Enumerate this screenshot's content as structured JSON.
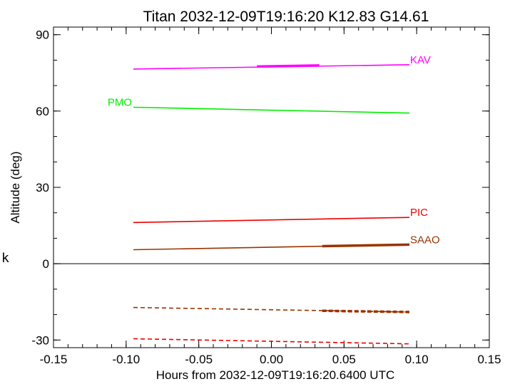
{
  "side_mark": "k",
  "chart_data": {
    "type": "line",
    "title": "Titan 2032-12-09T19:16:20  K12.83  G14.61",
    "xlabel": "Hours from 2032-12-09T19:16:20.6400 UTC",
    "ylabel": "Altitude (deg)",
    "xlim": [
      -0.15,
      0.15
    ],
    "ylim": [
      -33,
      93
    ],
    "xticks": [
      -0.15,
      -0.1,
      -0.05,
      0.0,
      0.05,
      0.1,
      0.15
    ],
    "xtick_labels": [
      "-0.15",
      "-0.10",
      "-0.05",
      "0.00",
      "0.05",
      "0.10",
      "0.15"
    ],
    "yticks": [
      -30,
      0,
      30,
      60,
      90
    ],
    "ytick_labels": [
      "-30",
      "0",
      "30",
      "60",
      "90"
    ],
    "zero_line": 0,
    "grid": false,
    "series": [
      {
        "name": "KAV",
        "color": "#ff00ff",
        "x": [
          -0.095,
          0.095
        ],
        "y": [
          76.5,
          78.2
        ],
        "highlight": {
          "x": [
            -0.01,
            0.033
          ],
          "y": [
            77.5,
            77.9
          ]
        },
        "label_side": "end"
      },
      {
        "name": "PMO",
        "color": "#00ee00",
        "x": [
          -0.095,
          0.095
        ],
        "y": [
          61.5,
          59.2
        ],
        "label_side": "start"
      },
      {
        "name": "PIC",
        "color": "#ee0000",
        "x": [
          -0.095,
          0.095
        ],
        "y": [
          16.2,
          18.2
        ],
        "label_side": "end"
      },
      {
        "name": "SAAO",
        "color": "#993300",
        "x": [
          -0.095,
          0.095
        ],
        "y": [
          5.5,
          7.5
        ],
        "highlight": {
          "x": [
            0.035,
            0.095
          ],
          "y": [
            6.9,
            7.5
          ]
        },
        "label_side": "end"
      },
      {
        "name": "",
        "color": "#993300",
        "dashed": true,
        "x": [
          -0.095,
          0.095
        ],
        "y": [
          -17.2,
          -19.0
        ],
        "highlight": {
          "x": [
            0.035,
            0.095
          ],
          "y": [
            -18.5,
            -19.0
          ]
        }
      },
      {
        "name": "",
        "color": "#ee0000",
        "dashed": true,
        "x": [
          -0.095,
          0.095
        ],
        "y": [
          -29.5,
          -31.5
        ]
      }
    ]
  }
}
